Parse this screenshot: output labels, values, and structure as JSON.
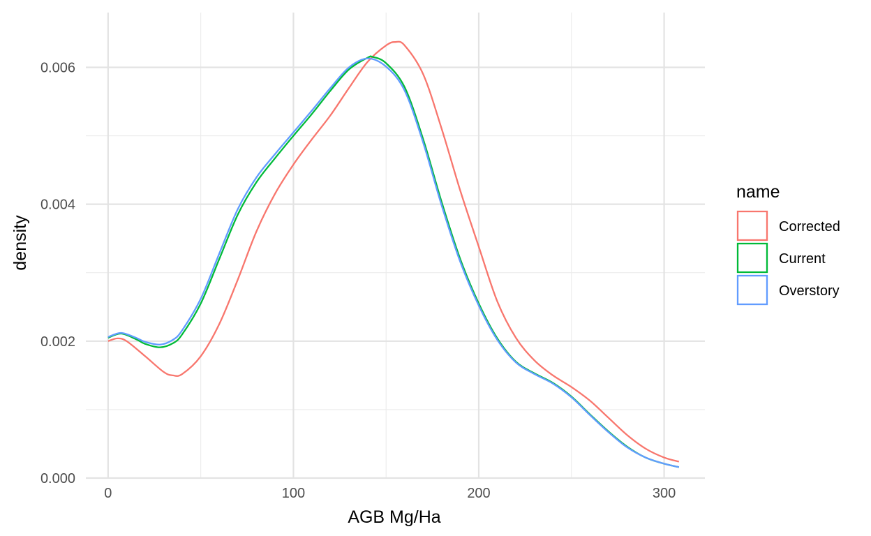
{
  "chart_data": {
    "type": "line",
    "title": "",
    "xlabel": "AGB Mg/Ha",
    "ylabel": "density",
    "xlim": [
      -12,
      322
    ],
    "ylim": [
      0,
      0.0068
    ],
    "x_major_ticks": [
      0,
      100,
      200,
      300
    ],
    "x_minor_ticks": [
      50,
      150,
      250
    ],
    "y_major_ticks": [
      0.0,
      0.002,
      0.004,
      0.006
    ],
    "y_minor_ticks": [
      0.001,
      0.003,
      0.005
    ],
    "x_tick_labels": [
      "0",
      "100",
      "200",
      "300"
    ],
    "y_tick_labels": [
      "0.000",
      "0.002",
      "0.004",
      "0.006"
    ],
    "grid": true,
    "legend": {
      "title": "name",
      "position": "right"
    },
    "series": [
      {
        "name": "Corrected",
        "color": "#F8766D",
        "points": [
          [
            0,
            0.002
          ],
          [
            5,
            0.00204
          ],
          [
            10,
            0.002
          ],
          [
            20,
            0.00178
          ],
          [
            30,
            0.00155
          ],
          [
            35,
            0.0015
          ],
          [
            40,
            0.00152
          ],
          [
            50,
            0.00178
          ],
          [
            60,
            0.00225
          ],
          [
            70,
            0.0029
          ],
          [
            80,
            0.0036
          ],
          [
            90,
            0.00415
          ],
          [
            100,
            0.00458
          ],
          [
            110,
            0.00495
          ],
          [
            120,
            0.0053
          ],
          [
            130,
            0.0057
          ],
          [
            140,
            0.00608
          ],
          [
            150,
            0.00632
          ],
          [
            155,
            0.00637
          ],
          [
            160,
            0.00632
          ],
          [
            170,
            0.0059
          ],
          [
            180,
            0.0051
          ],
          [
            190,
            0.0042
          ],
          [
            200,
            0.00338
          ],
          [
            210,
            0.00258
          ],
          [
            220,
            0.00205
          ],
          [
            230,
            0.00172
          ],
          [
            240,
            0.0015
          ],
          [
            250,
            0.00133
          ],
          [
            260,
            0.00113
          ],
          [
            270,
            0.00088
          ],
          [
            280,
            0.00063
          ],
          [
            290,
            0.00043
          ],
          [
            300,
            0.0003
          ],
          [
            308,
            0.00024
          ]
        ]
      },
      {
        "name": "Current",
        "color": "#00BA38",
        "points": [
          [
            0,
            0.00205
          ],
          [
            7,
            0.00211
          ],
          [
            15,
            0.00203
          ],
          [
            20,
            0.00196
          ],
          [
            28,
            0.00191
          ],
          [
            35,
            0.00197
          ],
          [
            40,
            0.0021
          ],
          [
            50,
            0.00255
          ],
          [
            60,
            0.0032
          ],
          [
            70,
            0.00385
          ],
          [
            80,
            0.00432
          ],
          [
            90,
            0.00467
          ],
          [
            100,
            0.005
          ],
          [
            110,
            0.00532
          ],
          [
            120,
            0.00566
          ],
          [
            130,
            0.00597
          ],
          [
            140,
            0.00614
          ],
          [
            143,
            0.00615
          ],
          [
            150,
            0.00606
          ],
          [
            160,
            0.00571
          ],
          [
            170,
            0.00495
          ],
          [
            180,
            0.00403
          ],
          [
            190,
            0.0032
          ],
          [
            200,
            0.00255
          ],
          [
            210,
            0.00204
          ],
          [
            220,
            0.0017
          ],
          [
            230,
            0.00153
          ],
          [
            240,
            0.00139
          ],
          [
            250,
            0.00119
          ],
          [
            260,
            0.00093
          ],
          [
            270,
            0.00068
          ],
          [
            280,
            0.00046
          ],
          [
            290,
            0.0003
          ],
          [
            300,
            0.00021
          ],
          [
            308,
            0.00016
          ]
        ]
      },
      {
        "name": "Overstory",
        "color": "#619CFF",
        "points": [
          [
            0,
            0.00206
          ],
          [
            7,
            0.00212
          ],
          [
            15,
            0.00205
          ],
          [
            20,
            0.00199
          ],
          [
            28,
            0.00195
          ],
          [
            35,
            0.00202
          ],
          [
            40,
            0.00216
          ],
          [
            50,
            0.00262
          ],
          [
            60,
            0.00328
          ],
          [
            70,
            0.00393
          ],
          [
            80,
            0.00439
          ],
          [
            90,
            0.00473
          ],
          [
            100,
            0.00505
          ],
          [
            110,
            0.00537
          ],
          [
            120,
            0.0057
          ],
          [
            130,
            0.006
          ],
          [
            140,
            0.00613
          ],
          [
            150,
            0.00601
          ],
          [
            160,
            0.00566
          ],
          [
            170,
            0.0049
          ],
          [
            180,
            0.00398
          ],
          [
            190,
            0.00316
          ],
          [
            200,
            0.00252
          ],
          [
            210,
            0.00202
          ],
          [
            220,
            0.00169
          ],
          [
            230,
            0.00152
          ],
          [
            240,
            0.00138
          ],
          [
            250,
            0.00118
          ],
          [
            260,
            0.00092
          ],
          [
            270,
            0.00067
          ],
          [
            280,
            0.00045
          ],
          [
            290,
            0.0003
          ],
          [
            300,
            0.00021
          ],
          [
            308,
            0.00016
          ]
        ]
      }
    ]
  }
}
